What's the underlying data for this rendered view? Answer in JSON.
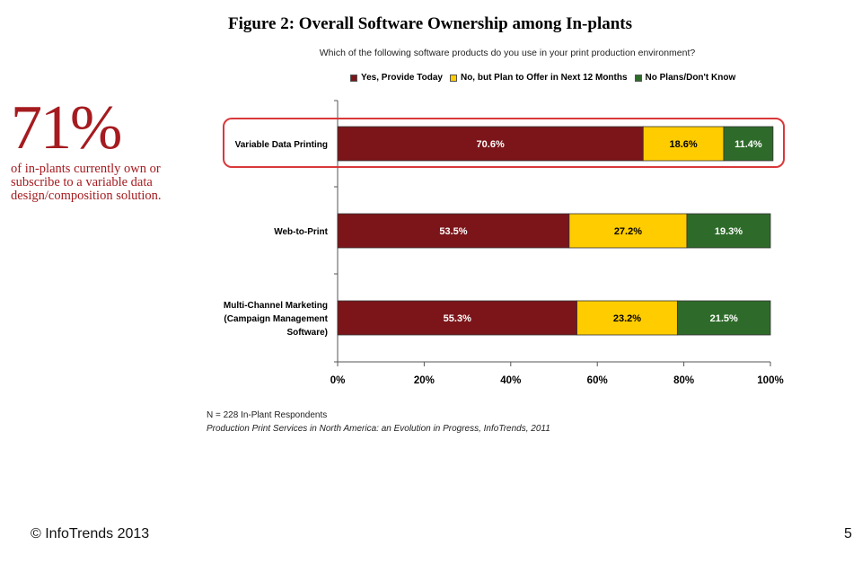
{
  "chart_data": {
    "type": "bar",
    "orientation": "horizontal-stacked-percent",
    "title": "Figure 2: Overall Software Ownership among In-plants",
    "subtitle": "Which of the following software products do you use in your print production environment?",
    "categories": [
      [
        "Variable Data Printing"
      ],
      [
        "Web-to-Print"
      ],
      [
        "Multi-Channel Marketing",
        "(Campaign Management",
        "Software)"
      ]
    ],
    "series": [
      {
        "name": "Yes, Provide Today",
        "color": "#7b1519",
        "label_color": "#ffffff",
        "values": [
          70.6,
          53.5,
          55.3
        ],
        "labels": [
          "70.6%",
          "53.5%",
          "55.3%"
        ]
      },
      {
        "name": "No, but Plan to Offer in Next 12 Months",
        "color": "#ffcc00",
        "label_color": "#000000",
        "values": [
          18.6,
          27.2,
          23.2
        ],
        "labels": [
          "18.6%",
          "27.2%",
          "23.2%"
        ]
      },
      {
        "name": "No Plans/Don't Know",
        "color": "#2e6b2a",
        "label_color": "#ffffff",
        "values": [
          11.4,
          19.3,
          21.5
        ],
        "labels": [
          "11.4%",
          "19.3%",
          "21.5%"
        ]
      }
    ],
    "xlim": [
      0,
      100
    ],
    "xticks": [
      "0%",
      "20%",
      "40%",
      "60%",
      "80%",
      "100%"
    ],
    "legend_position": "top",
    "highlighted_category": "Variable Data Printing",
    "highlight_color": "#d9383a"
  },
  "callout": {
    "value": "71%",
    "text": "of in-plants currently own or subscribe to a variable data design/composition solution."
  },
  "notes": {
    "sample": "N = 228 In-Plant Respondents",
    "source": "Production Print Services in North America: an Evolution in Progress, InfoTrends, 2011"
  },
  "footer": {
    "copyright": "© InfoTrends 2013",
    "page_number": "5"
  }
}
